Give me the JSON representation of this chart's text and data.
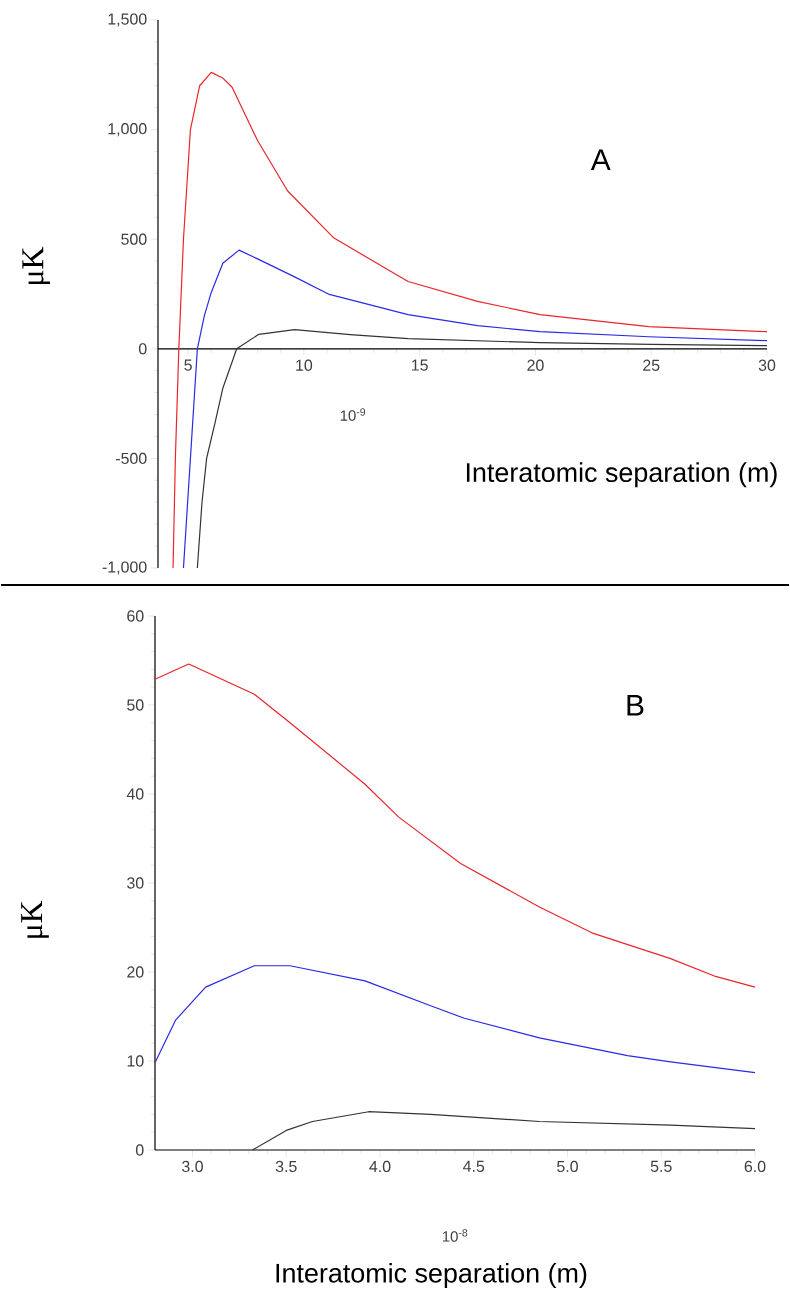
{
  "chart_data": [
    {
      "type": "line",
      "xlabel": "Interatomic separation (m)",
      "ylabel": "μK",
      "annotations": [
        "A",
        "10$^{-9}$"
      ],
      "xlim": [
        3.7,
        30
      ],
      "ylim": [
        -1000,
        1500
      ],
      "xticks": [
        5,
        10,
        15,
        20,
        25,
        30
      ],
      "yticks": [
        {
          "value": -1000,
          "label": "-1,000"
        },
        {
          "value": -500,
          "label": "-500"
        },
        0,
        500,
        {
          "value": 1000,
          "label": "1,000"
        },
        {
          "value": 1500,
          "label": "1,500"
        }
      ],
      "series": [
        {
          "color": "#e8262b",
          "x": [
            4.35,
            4.45,
            4.6,
            4.8,
            5.1,
            5.5,
            6.0,
            6.5,
            6.9,
            8,
            9.3,
            11.3,
            14.5,
            17.5,
            20.2,
            24.9,
            30
          ],
          "values": [
            -1000,
            -500,
            0,
            500,
            1000,
            1200,
            1261,
            1235,
            1193,
            950,
            720,
            505,
            307,
            216,
            156,
            101,
            78
          ]
        },
        {
          "color": "#2a2ae8",
          "x": [
            4.8,
            5.1,
            5.4,
            5.7,
            6.0,
            6.5,
            7.2,
            8,
            9.6,
            11.1,
            14.5,
            17.5,
            20.2,
            24.9,
            30
          ],
          "values": [
            -1000,
            -500,
            0,
            150,
            257,
            390,
            450,
            410,
            328,
            248,
            156,
            106,
            78,
            55,
            37
          ]
        },
        {
          "color": "#333333",
          "x": [
            5.4,
            5.6,
            5.8,
            6.15,
            6.5,
            7.1,
            8.05,
            9.6,
            12,
            14.5,
            20.2,
            25,
            30
          ],
          "values": [
            -1000,
            -700,
            -500,
            -344,
            -180,
            0,
            66,
            87,
            65,
            46,
            28,
            20,
            14
          ]
        }
      ]
    },
    {
      "type": "line",
      "xlabel": "Interatomic separation (m)",
      "ylabel": "μK",
      "annotations": [
        "B",
        "10$^{-8}$"
      ],
      "xlim": [
        2.8,
        6.0
      ],
      "ylim": [
        0,
        60
      ],
      "xticks": [
        {
          "value": 3,
          "label": "3.0"
        },
        3.5,
        {
          "value": 4,
          "label": "4.0"
        },
        4.5,
        {
          "value": 5,
          "label": "5.0"
        },
        5.5,
        {
          "value": 6,
          "label": "6.0"
        }
      ],
      "yticks": [
        0,
        10,
        20,
        30,
        40,
        50,
        60
      ],
      "series": [
        {
          "color": "#e8262b",
          "x": [
            2.8,
            2.98,
            3.33,
            3.52,
            3.92,
            4.1,
            4.43,
            4.85,
            5.13,
            5.55,
            5.79,
            6.0
          ],
          "values": [
            52.9,
            54.6,
            51.2,
            48.0,
            41.1,
            37.4,
            32.2,
            27.3,
            24.4,
            21.5,
            19.5,
            18.3
          ]
        },
        {
          "color": "#2a2ae8",
          "x": [
            2.8,
            2.91,
            3.07,
            3.33,
            3.52,
            3.92,
            4.27,
            4.45,
            4.85,
            5.32,
            5.55,
            6.0
          ],
          "values": [
            9.8,
            14.6,
            18.3,
            20.7,
            20.7,
            19.0,
            16.2,
            14.8,
            12.6,
            10.6,
            9.9,
            8.7
          ]
        },
        {
          "color": "#333333",
          "x": [
            3.32,
            3.5,
            3.64,
            3.94,
            4.27,
            4.85,
            5.55,
            6.0
          ],
          "values": [
            0,
            2.2,
            3.2,
            4.3,
            4.0,
            3.2,
            2.8,
            2.4
          ]
        }
      ]
    }
  ]
}
